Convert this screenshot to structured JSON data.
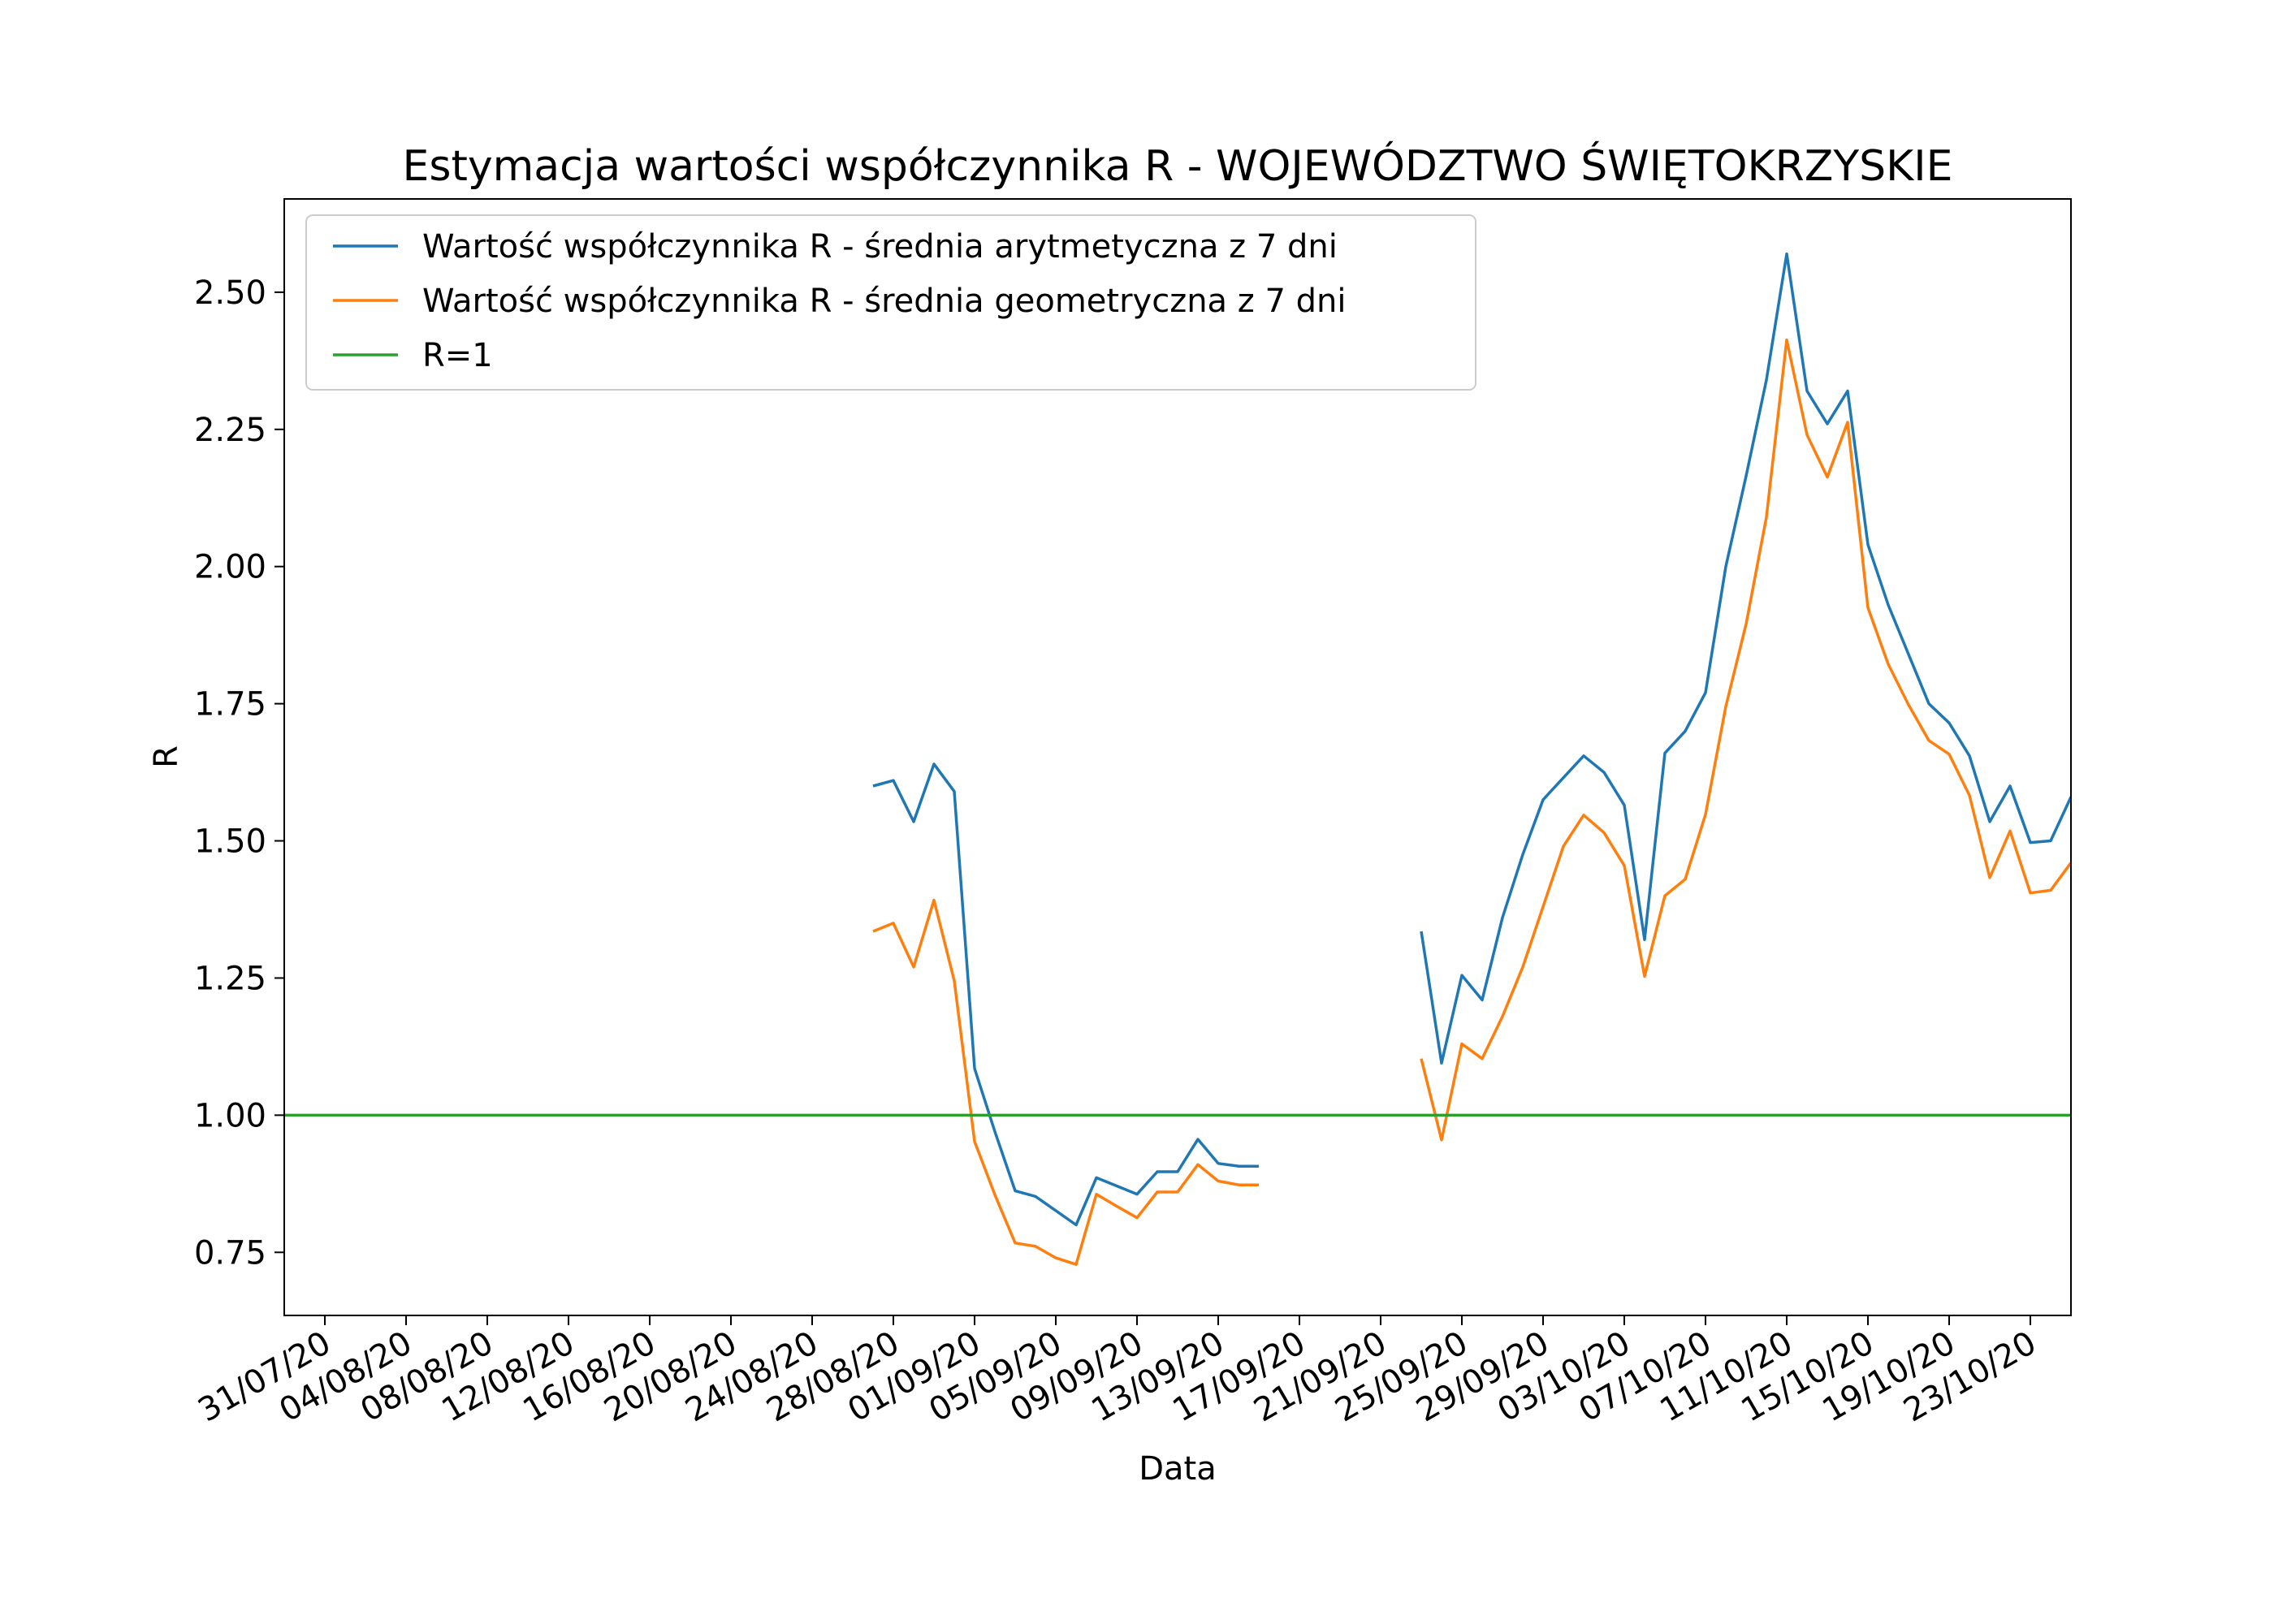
{
  "chart_data": {
    "type": "line",
    "title": "Estymacja wartości współczynnika R - WOJEWÓDZTWO ŚWIĘTOKRZYSKIE",
    "xlabel": "Data",
    "ylabel": "R",
    "x_axis_type": "date",
    "x_start_date": "2020-07-29",
    "xlim": [
      "2020-07-29",
      "2020-10-25"
    ],
    "ylim": [
      0.635,
      2.67
    ],
    "yticks": [
      0.75,
      1.0,
      1.25,
      1.5,
      1.75,
      2.0,
      2.25,
      2.5
    ],
    "ytick_labels": [
      "0.75",
      "1.00",
      "1.25",
      "1.50",
      "1.75",
      "2.00",
      "2.25",
      "2.50"
    ],
    "xticks": [
      "2020-07-31",
      "2020-08-04",
      "2020-08-08",
      "2020-08-12",
      "2020-08-16",
      "2020-08-20",
      "2020-08-24",
      "2020-08-28",
      "2020-09-01",
      "2020-09-05",
      "2020-09-09",
      "2020-09-13",
      "2020-09-17",
      "2020-09-21",
      "2020-09-25",
      "2020-09-29",
      "2020-10-03",
      "2020-10-07",
      "2020-10-11",
      "2020-10-15",
      "2020-10-19",
      "2020-10-23"
    ],
    "xtick_labels": [
      "31/07/20",
      "04/08/20",
      "08/08/20",
      "12/08/20",
      "16/08/20",
      "20/08/20",
      "24/08/20",
      "28/08/20",
      "01/09/20",
      "05/09/20",
      "09/09/20",
      "13/09/20",
      "17/09/20",
      "21/09/20",
      "25/09/20",
      "29/09/20",
      "03/10/20",
      "07/10/20",
      "11/10/20",
      "15/10/20",
      "19/10/20",
      "23/10/20"
    ],
    "legend_position": "top-left",
    "grid": false,
    "series": [
      {
        "name": "Wartość współczynnika R - średnia arytmetyczna z 7 dni",
        "color": "#1f77b4",
        "segments": [
          {
            "x": [
              "2020-08-27",
              "2020-08-28",
              "2020-08-29",
              "2020-08-30",
              "2020-08-31",
              "2020-09-01",
              "2020-09-02",
              "2020-09-03",
              "2020-09-04",
              "2020-09-05",
              "2020-09-06",
              "2020-09-07",
              "2020-09-08",
              "2020-09-09",
              "2020-09-10",
              "2020-09-11",
              "2020-09-12",
              "2020-09-13",
              "2020-09-14",
              "2020-09-15"
            ],
            "y": [
              1.6,
              1.61,
              1.535,
              1.64,
              1.59,
              1.085,
              0.97,
              0.862,
              0.852,
              0.826,
              0.8,
              0.886,
              0.871,
              0.856,
              0.897,
              0.897,
              0.956,
              0.912,
              0.907,
              0.907
            ]
          },
          {
            "x": [
              "2020-09-23",
              "2020-09-24",
              "2020-09-25",
              "2020-09-26",
              "2020-09-27",
              "2020-09-28",
              "2020-09-29",
              "2020-09-30",
              "2020-10-01",
              "2020-10-02",
              "2020-10-03",
              "2020-10-04",
              "2020-10-05",
              "2020-10-06",
              "2020-10-07",
              "2020-10-08",
              "2020-10-09",
              "2020-10-10",
              "2020-10-11",
              "2020-10-12",
              "2020-10-13",
              "2020-10-14",
              "2020-10-15",
              "2020-10-16",
              "2020-10-17",
              "2020-10-18",
              "2020-10-19",
              "2020-10-20",
              "2020-10-21",
              "2020-10-22",
              "2020-10-23",
              "2020-10-24",
              "2020-10-25"
            ],
            "y": [
              1.335,
              1.095,
              1.255,
              1.21,
              1.36,
              1.475,
              1.575,
              1.615,
              1.655,
              1.625,
              1.565,
              1.32,
              1.66,
              1.7,
              1.77,
              2.0,
              2.165,
              2.34,
              2.57,
              2.32,
              2.26,
              2.32,
              2.04,
              1.93,
              1.84,
              1.75,
              1.715,
              1.655,
              1.535,
              1.6,
              1.497,
              1.5,
              1.58
            ]
          },
          {
            "x": [
              "2020-10-25"
            ],
            "y": [
              1.58
            ]
          }
        ]
      },
      {
        "name": "Wartość współczynnika R - średnia geometryczna z 7 dni",
        "color": "#ff7f0e",
        "segments": [
          {
            "x": [
              "2020-08-27",
              "2020-08-28",
              "2020-08-29",
              "2020-08-30",
              "2020-08-31",
              "2020-09-01",
              "2020-09-02",
              "2020-09-03",
              "2020-09-04",
              "2020-09-05",
              "2020-09-06",
              "2020-09-07",
              "2020-09-08",
              "2020-09-09",
              "2020-09-10",
              "2020-09-11",
              "2020-09-12",
              "2020-09-13",
              "2020-09-14",
              "2020-09-15"
            ],
            "y": [
              1.335,
              1.35,
              1.27,
              1.392,
              1.245,
              0.952,
              0.855,
              0.767,
              0.761,
              0.74,
              0.728,
              0.856,
              0.834,
              0.813,
              0.86,
              0.86,
              0.91,
              0.88,
              0.873,
              0.873
            ]
          },
          {
            "x": [
              "2020-09-23",
              "2020-09-24",
              "2020-09-25",
              "2020-09-26",
              "2020-09-27",
              "2020-09-28",
              "2020-09-29",
              "2020-09-30",
              "2020-10-01",
              "2020-10-02",
              "2020-10-03",
              "2020-10-04",
              "2020-10-05",
              "2020-10-06",
              "2020-10-07",
              "2020-10-08",
              "2020-10-09",
              "2020-10-10",
              "2020-10-11",
              "2020-10-12",
              "2020-10-13",
              "2020-10-14",
              "2020-10-15",
              "2020-10-16",
              "2020-10-17",
              "2020-10-18",
              "2020-10-19",
              "2020-10-20",
              "2020-10-21",
              "2020-10-22",
              "2020-10-23",
              "2020-10-24",
              "2020-10-25"
            ],
            "y": [
              1.103,
              0.955,
              1.13,
              1.103,
              1.18,
              1.27,
              1.38,
              1.49,
              1.547,
              1.515,
              1.455,
              1.253,
              1.4,
              1.43,
              1.548,
              1.745,
              1.895,
              2.09,
              2.413,
              2.24,
              2.163,
              2.263,
              1.925,
              1.822,
              1.748,
              1.683,
              1.658,
              1.583,
              1.433,
              1.518,
              1.405,
              1.41,
              1.46
            ]
          }
        ]
      },
      {
        "name": "R=1",
        "color": "#2ca02c",
        "constant": 1.0
      }
    ]
  }
}
